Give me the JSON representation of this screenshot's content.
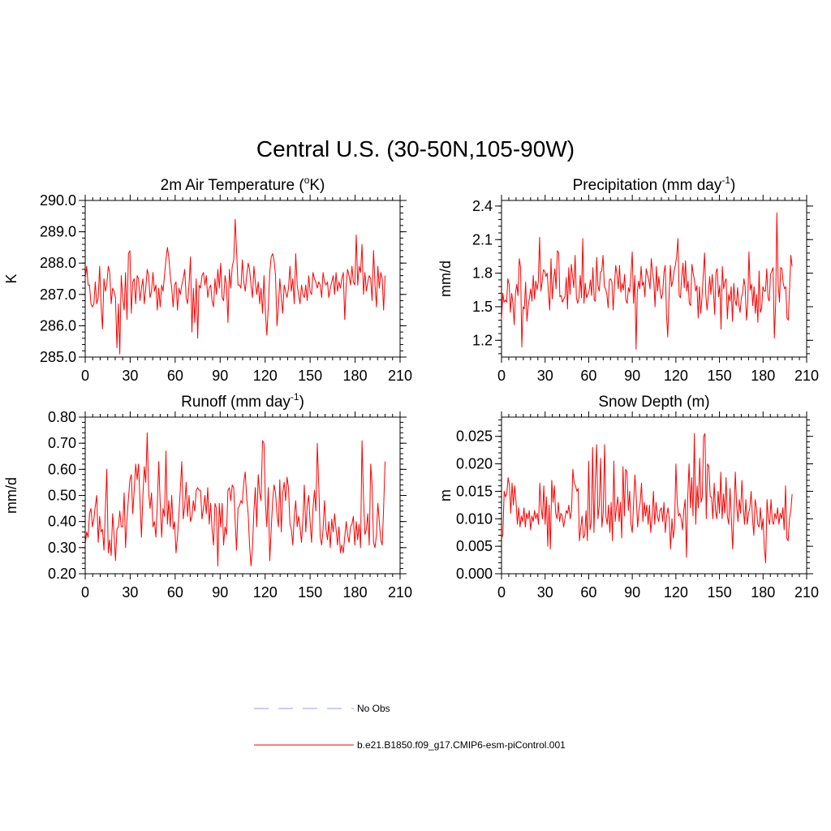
{
  "title": "Central U.S. (30-50N,105-90W)",
  "colors": {
    "model": "#ff0000",
    "obs": "#9999ff",
    "axis": "#000000"
  },
  "legend": {
    "entries": [
      {
        "label": "No Obs",
        "style": "dashed",
        "color": "#9999ff"
      },
      {
        "label": "b.e21.B1850.f09_g17.CMIP6-esm-piControl.001",
        "style": "solid",
        "color": "#ff0000"
      }
    ]
  },
  "chart_data": [
    {
      "type": "line",
      "title_main": "2m Air Temperature (",
      "title_sup": "o",
      "title_tail": "K)",
      "ylabel": "K",
      "xlabel": "",
      "xlim": [
        0,
        210
      ],
      "ylim": [
        285.0,
        290.0
      ],
      "xticks": [
        "0",
        "30",
        "60",
        "90",
        "120",
        "150",
        "180",
        "210"
      ],
      "yticks": [
        "285.0",
        "286.0",
        "287.0",
        "288.0",
        "289.0",
        "290.0"
      ],
      "ytick_values": [
        285,
        286,
        287,
        288,
        289,
        290
      ],
      "y_minor_step": 0.2,
      "series": [
        {
          "name": "b.e21.B1850.f09_g17.CMIP6-esm-piControl.001",
          "color": "#ff0000",
          "values": [
            287.5,
            287.9,
            287.3,
            287.3,
            286.7,
            286.6,
            286.7,
            287.4,
            286.7,
            286.9,
            287.9,
            286.7,
            285.9,
            287.5,
            287.1,
            287.3,
            287.9,
            287.7,
            286.7,
            287.2,
            287.1,
            286.9,
            285.3,
            286.7,
            285.1,
            287.6,
            286.9,
            286.5,
            287.7,
            286.2,
            288.3,
            288.4,
            286.4,
            287.4,
            287.5,
            286.7,
            287.6,
            287.5,
            286.8,
            287.2,
            287.5,
            286.7,
            287.2,
            287.8,
            287.6,
            286.9,
            287.1,
            287.7,
            287.1,
            287.3,
            286.5,
            287.2,
            286.6,
            287.3,
            287.1,
            287.6,
            288.1,
            288.5,
            288.2,
            287.6,
            287.2,
            286.6,
            287.3,
            287.4,
            286.5,
            287.2,
            287.0,
            287.3,
            287.5,
            287.8,
            286.9,
            286.7,
            287.3,
            288.2,
            285.8,
            287.2,
            286.1,
            287.5,
            285.6,
            287.3,
            287.2,
            287.6,
            287.7,
            287.3,
            287.6,
            286.9,
            287.2,
            287.3,
            286.8,
            286.6,
            287.5,
            287.0,
            287.8,
            287.2,
            288.0,
            286.9,
            286.8,
            287.6,
            287.3,
            286.1,
            287.8,
            287.2,
            287.9,
            288.1,
            289.4,
            288.4,
            287.3,
            287.3,
            287.2,
            288.1,
            287.4,
            287.1,
            287.6,
            288.0,
            287.8,
            287.3,
            286.9,
            287.9,
            287.4,
            287.0,
            287.4,
            286.7,
            287.2,
            286.4,
            287.6,
            286.4,
            285.7,
            286.6,
            287.7,
            288.2,
            288.3,
            288.1,
            287.6,
            286.0,
            286.6,
            287.5,
            286.9,
            286.4,
            287.3,
            287.1,
            286.9,
            287.2,
            287.9,
            287.1,
            287.5,
            286.7,
            288.3,
            287.3,
            287.0,
            286.7,
            287.3,
            287.0,
            286.9,
            287.3,
            286.8,
            287.6,
            287.1,
            287.0,
            287.7,
            287.5,
            287.4,
            287.2,
            287.4,
            287.3,
            286.9,
            287.7,
            287.4,
            287.3,
            287.4,
            286.9,
            287.2,
            287.4,
            287.6,
            287.0,
            287.7,
            287.1,
            287.4,
            287.2,
            287.5,
            287.7,
            286.2,
            287.3,
            287.8,
            287.6,
            287.3,
            287.9,
            287.4,
            287.3,
            288.9,
            287.3,
            287.9,
            287.7,
            288.6,
            287.0,
            287.7,
            287.1,
            287.4,
            287.6,
            287.5,
            286.8,
            288.4,
            287.3,
            286.6,
            287.9,
            287.2,
            287.7,
            287.5,
            286.5,
            287.6
          ]
        }
      ]
    },
    {
      "type": "line",
      "title_main": "Precipitation (mm day",
      "title_sup": "-1",
      "title_tail": ")",
      "ylabel": "mm/d",
      "xlabel": "",
      "xlim": [
        0,
        210
      ],
      "ylim": [
        1.05,
        2.45
      ],
      "xticks": [
        "0",
        "30",
        "60",
        "90",
        "120",
        "150",
        "180",
        "210"
      ],
      "yticks": [
        "1.2",
        "1.5",
        "1.8",
        "2.1",
        "2.4"
      ],
      "ytick_values": [
        1.2,
        1.5,
        1.8,
        2.1,
        2.4
      ],
      "y_minor_step": 0.06,
      "series": [
        {
          "name": "b.e21.B1850.f09_g17.CMIP6-esm-piControl.001",
          "color": "#ff0000",
          "values": [
            1.38,
            1.62,
            1.54,
            1.56,
            1.54,
            1.75,
            1.7,
            1.45,
            1.62,
            1.53,
            1.34,
            1.62,
            1.7,
            1.6,
            1.93,
            1.85,
            1.14,
            1.5,
            1.48,
            1.72,
            1.37,
            1.5,
            1.58,
            1.66,
            1.55,
            1.78,
            1.57,
            1.73,
            1.65,
            1.72,
            2.12,
            1.64,
            1.72,
            1.83,
            1.82,
            1.77,
            1.8,
            1.61,
            1.47,
            1.93,
            1.57,
            1.74,
            1.84,
            1.66,
            2.0,
            1.98,
            1.59,
            1.6,
            1.54,
            1.57,
            1.59,
            1.76,
            1.48,
            1.85,
            1.61,
            1.88,
            1.77,
            1.67,
            1.96,
            1.58,
            1.53,
            1.58,
            1.78,
            1.58,
            2.11,
            1.53,
            1.71,
            1.58,
            1.61,
            1.64,
            1.74,
            1.6,
            1.85,
            1.56,
            1.55,
            1.94,
            1.69,
            1.64,
            1.81,
            1.82,
            1.96,
            1.68,
            1.66,
            1.61,
            1.49,
            1.74,
            1.75,
            1.72,
            1.47,
            1.69,
            1.87,
            1.79,
            1.66,
            1.87,
            1.63,
            1.71,
            1.65,
            1.79,
            1.56,
            1.53,
            1.67,
            1.63,
            1.79,
            1.99,
            1.53,
            1.78,
            1.12,
            1.63,
            1.73,
            1.66,
            1.86,
            1.69,
            1.72,
            1.59,
            1.84,
            1.79,
            1.74,
            1.66,
            1.93,
            1.81,
            1.73,
            1.5,
            1.86,
            1.64,
            1.77,
            1.64,
            1.57,
            1.62,
            1.81,
            1.87,
            1.43,
            1.23,
            1.58,
            1.87,
            1.68,
            1.73,
            1.82,
            1.87,
            1.95,
            2.11,
            1.6,
            1.58,
            1.77,
            1.89,
            1.67,
            1.91,
            1.64,
            1.73,
            1.53,
            1.51,
            1.88,
            1.8,
            1.74,
            1.64,
            1.69,
            1.4,
            1.68,
            1.44,
            1.59,
            1.78,
            1.98,
            1.6,
            1.47,
            1.61,
            1.77,
            1.61,
            1.79,
            1.64,
            1.43,
            1.81,
            1.84,
            1.59,
            1.69,
            1.3,
            1.86,
            1.66,
            1.72,
            1.75,
            1.39,
            1.61,
            1.55,
            1.68,
            1.37,
            1.71,
            1.56,
            1.51,
            1.67,
            1.52,
            1.45,
            1.58,
            1.62,
            1.75,
            1.68,
            1.38,
            1.53,
            1.99,
            1.65,
            1.7,
            1.51,
            1.68,
            1.44,
            1.61,
            1.36,
            1.82,
            1.45,
            1.49,
            1.68,
            1.64,
            1.64,
            1.84,
            1.58,
            1.55,
            1.79,
            1.82,
            1.85,
            1.22,
            1.53,
            2.34,
            1.71,
            1.54,
            1.85,
            1.84,
            1.71,
            1.66,
            1.68,
            1.4,
            1.38,
            1.67,
            1.96,
            1.86
          ]
        }
      ]
    },
    {
      "type": "line",
      "title_main": "Runoff (mm day",
      "title_sup": "-1",
      "title_tail": ")",
      "ylabel": "mm/d",
      "xlabel": "",
      "xlim": [
        0,
        210
      ],
      "ylim": [
        0.2,
        0.8
      ],
      "xticks": [
        "0",
        "30",
        "60",
        "90",
        "120",
        "150",
        "180",
        "210"
      ],
      "yticks": [
        "0.20",
        "0.30",
        "0.40",
        "0.50",
        "0.60",
        "0.70",
        "0.80"
      ],
      "ytick_values": [
        0.2,
        0.3,
        0.4,
        0.5,
        0.6,
        0.7,
        0.8
      ],
      "y_minor_step": 0.02,
      "series": [
        {
          "name": "b.e21.B1850.f09_g17.CMIP6-esm-piControl.001",
          "color": "#ff0000",
          "values": [
            0.31,
            0.36,
            0.34,
            0.43,
            0.45,
            0.38,
            0.41,
            0.46,
            0.5,
            0.32,
            0.42,
            0.36,
            0.37,
            0.29,
            0.45,
            0.6,
            0.28,
            0.33,
            0.27,
            0.43,
            0.35,
            0.25,
            0.37,
            0.38,
            0.44,
            0.38,
            0.38,
            0.51,
            0.3,
            0.41,
            0.49,
            0.56,
            0.58,
            0.43,
            0.52,
            0.62,
            0.56,
            0.62,
            0.48,
            0.34,
            0.5,
            0.61,
            0.55,
            0.74,
            0.51,
            0.45,
            0.51,
            0.38,
            0.4,
            0.34,
            0.46,
            0.63,
            0.47,
            0.34,
            0.45,
            0.42,
            0.67,
            0.39,
            0.48,
            0.38,
            0.5,
            0.37,
            0.4,
            0.28,
            0.34,
            0.43,
            0.53,
            0.63,
            0.41,
            0.46,
            0.55,
            0.42,
            0.5,
            0.4,
            0.42,
            0.48,
            0.44,
            0.52,
            0.53,
            0.52,
            0.52,
            0.41,
            0.45,
            0.5,
            0.43,
            0.53,
            0.39,
            0.47,
            0.37,
            0.31,
            0.47,
            0.45,
            0.23,
            0.47,
            0.38,
            0.47,
            0.31,
            0.38,
            0.35,
            0.52,
            0.53,
            0.48,
            0.54,
            0.53,
            0.4,
            0.29,
            0.45,
            0.46,
            0.48,
            0.47,
            0.55,
            0.59,
            0.49,
            0.43,
            0.31,
            0.23,
            0.3,
            0.44,
            0.53,
            0.38,
            0.58,
            0.51,
            0.48,
            0.71,
            0.7,
            0.47,
            0.38,
            0.53,
            0.25,
            0.37,
            0.48,
            0.54,
            0.51,
            0.43,
            0.38,
            0.56,
            0.36,
            0.51,
            0.55,
            0.48,
            0.57,
            0.53,
            0.39,
            0.37,
            0.31,
            0.42,
            0.48,
            0.38,
            0.42,
            0.38,
            0.32,
            0.41,
            0.54,
            0.36,
            0.46,
            0.5,
            0.4,
            0.32,
            0.45,
            0.52,
            0.44,
            0.7,
            0.54,
            0.34,
            0.31,
            0.37,
            0.48,
            0.37,
            0.33,
            0.4,
            0.3,
            0.41,
            0.36,
            0.43,
            0.37,
            0.31,
            0.38,
            0.28,
            0.31,
            0.28,
            0.34,
            0.4,
            0.35,
            0.32,
            0.38,
            0.39,
            0.42,
            0.31,
            0.4,
            0.33,
            0.39,
            0.3,
            0.71,
            0.49,
            0.35,
            0.37,
            0.43,
            0.31,
            0.62,
            0.54,
            0.32,
            0.3,
            0.35,
            0.47,
            0.4,
            0.33,
            0.31,
            0.45,
            0.63
          ]
        }
      ]
    },
    {
      "type": "line",
      "title_main": "Snow Depth (m)",
      "title_sup": "",
      "title_tail": "",
      "ylabel": "m",
      "xlabel": "",
      "xlim": [
        0,
        210
      ],
      "ylim": [
        0.0,
        0.0285
      ],
      "xticks": [
        "0",
        "30",
        "60",
        "90",
        "120",
        "150",
        "180",
        "210"
      ],
      "yticks": [
        "0.000",
        "0.005",
        "0.010",
        "0.015",
        "0.020",
        "0.025"
      ],
      "ytick_values": [
        0,
        0.005,
        0.01,
        0.015,
        0.02,
        0.025
      ],
      "y_minor_step": 0.001,
      "series": [
        {
          "name": "b.e21.B1850.f09_g17.CMIP6-esm-piControl.001",
          "color": "#ff0000",
          "values": [
            0.0065,
            0.007,
            0.015,
            0.014,
            0.0145,
            0.0175,
            0.016,
            0.011,
            0.0165,
            0.0125,
            0.016,
            0.013,
            0.009,
            0.012,
            0.0085,
            0.0105,
            0.0095,
            0.012,
            0.0085,
            0.011,
            0.01,
            0.0115,
            0.008,
            0.0105,
            0.0095,
            0.0115,
            0.01,
            0.011,
            0.009,
            0.0165,
            0.012,
            0.01,
            0.016,
            0.009,
            0.014,
            0.005,
            0.0125,
            0.0045,
            0.017,
            0.013,
            0.016,
            0.011,
            0.01,
            0.013,
            0.0095,
            0.011,
            0.0105,
            0.0085,
            0.01,
            0.0115,
            0.011,
            0.0125,
            0.01,
            0.0115,
            0.019,
            0.0165,
            0.016,
            0.015,
            0.0155,
            0.006,
            0.0085,
            0.0105,
            0.0065,
            0.007,
            0.0115,
            0.006,
            0.0205,
            0.008,
            0.0095,
            0.023,
            0.0075,
            0.017,
            0.0235,
            0.01,
            0.0125,
            0.021,
            0.0085,
            0.011,
            0.0235,
            0.0105,
            0.009,
            0.0125,
            0.0075,
            0.013,
            0.006,
            0.0205,
            0.0095,
            0.012,
            0.014,
            0.0095,
            0.013,
            0.0065,
            0.0195,
            0.0105,
            0.019,
            0.0185,
            0.0115,
            0.015,
            0.009,
            0.0075,
            0.013,
            0.018,
            0.014,
            0.0085,
            0.0115,
            0.013,
            0.0165,
            0.0095,
            0.013,
            0.0105,
            0.0125,
            0.009,
            0.0125,
            0.0075,
            0.0105,
            0.015,
            0.009,
            0.013,
            0.0105,
            0.0095,
            0.0115,
            0.012,
            0.0095,
            0.013,
            0.0075,
            0.0105,
            0.012,
            0.01,
            0.0045,
            0.01,
            0.0065,
            0.0085,
            0.02,
            0.013,
            0.0105,
            0.011,
            0.01,
            0.008,
            0.0115,
            0.0135,
            0.003,
            0.014,
            0.02,
            0.012,
            0.0175,
            0.0105,
            0.0255,
            0.009,
            0.016,
            0.012,
            0.021,
            0.013,
            0.014,
            0.025,
            0.0255,
            0.01,
            0.02,
            0.0195,
            0.014,
            0.014,
            0.01,
            0.0165,
            0.0115,
            0.01,
            0.015,
            0.011,
            0.0185,
            0.01,
            0.0145,
            0.011,
            0.0175,
            0.0105,
            0.009,
            0.0155,
            0.01,
            0.0045,
            0.0115,
            0.0185,
            0.0125,
            0.0095,
            0.0135,
            0.011,
            0.017,
            0.012,
            0.009,
            0.0135,
            0.009,
            0.011,
            0.012,
            0.015,
            0.01,
            0.007,
            0.0135,
            0.012,
            0.009,
            0.0085,
            0.012,
            0.008,
            0.01,
            0.0045,
            0.002,
            0.0135,
            0.01,
            0.009,
            0.0135,
            0.0095,
            0.009,
            0.011,
            0.01,
            0.012,
            0.009,
            0.011,
            0.01,
            0.012,
            0.008,
            0.016,
            0.0065,
            0.006,
            0.01,
            0.0115,
            0.0145
          ]
        }
      ]
    }
  ]
}
